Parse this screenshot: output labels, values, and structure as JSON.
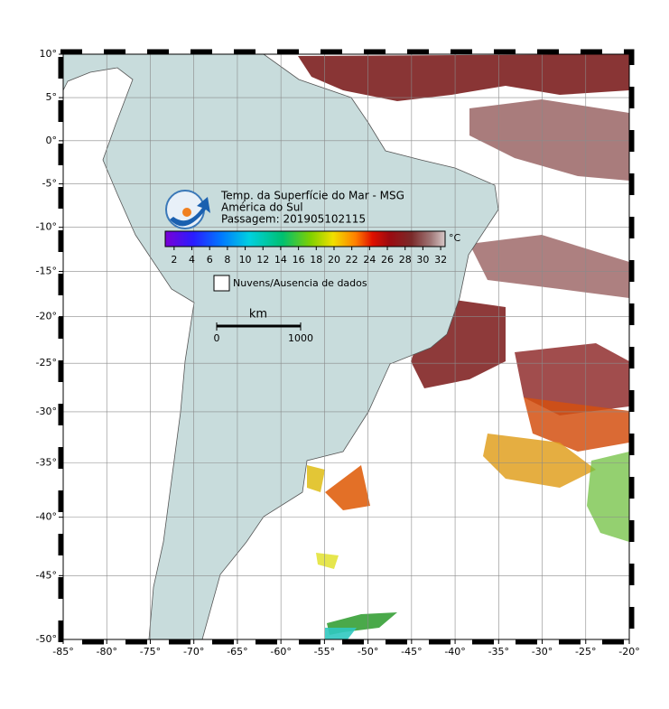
{
  "title_lines": [
    "Temp. da Superfície do Mar - MSG",
    "América do Sul",
    "Passagem: 201905102115"
  ],
  "colorbar": {
    "unit": "°C",
    "lim": [
      1,
      32.5
    ],
    "ticks": [
      2,
      4,
      6,
      8,
      10,
      12,
      14,
      16,
      18,
      20,
      22,
      24,
      26,
      28,
      30,
      32
    ]
  },
  "legend": {
    "label": "Nuvens/Ausencia de dados"
  },
  "scale_bar": {
    "unit": "km",
    "ticks": [
      0,
      1000
    ]
  },
  "map": {
    "xlim": [
      -85,
      -20
    ],
    "ylim": [
      -50,
      10
    ],
    "grid": true,
    "xticks": [
      {
        "value": -85,
        "label": "-85°"
      },
      {
        "value": -80,
        "label": "-80°"
      },
      {
        "value": -75,
        "label": "-75°"
      },
      {
        "value": -70,
        "label": "-70°"
      },
      {
        "value": -65,
        "label": "-65°"
      },
      {
        "value": -60,
        "label": "-60°"
      },
      {
        "value": -55,
        "label": "-55°"
      },
      {
        "value": -50,
        "label": "-50°"
      },
      {
        "value": -45,
        "label": "-45°"
      },
      {
        "value": -40,
        "label": "-40°"
      },
      {
        "value": -35,
        "label": "-35°"
      },
      {
        "value": -30,
        "label": "-30°"
      },
      {
        "value": -25,
        "label": "-25°"
      },
      {
        "value": -20,
        "label": "-20°"
      }
    ],
    "yticks": [
      {
        "value": 10,
        "label": "10°"
      },
      {
        "value": 5,
        "label": "5°"
      },
      {
        "value": 0,
        "label": "0°"
      },
      {
        "value": -5,
        "label": "-5°"
      },
      {
        "value": -10,
        "label": "-10°"
      },
      {
        "value": -15,
        "label": "-15°"
      },
      {
        "value": -20,
        "label": "-20°"
      },
      {
        "value": -25,
        "label": "-25°"
      },
      {
        "value": -30,
        "label": "-30°"
      },
      {
        "value": -35,
        "label": "-35°"
      },
      {
        "value": -40,
        "label": "-40°"
      },
      {
        "value": -45,
        "label": "-45°"
      },
      {
        "value": -50,
        "label": "-50°"
      }
    ]
  }
}
